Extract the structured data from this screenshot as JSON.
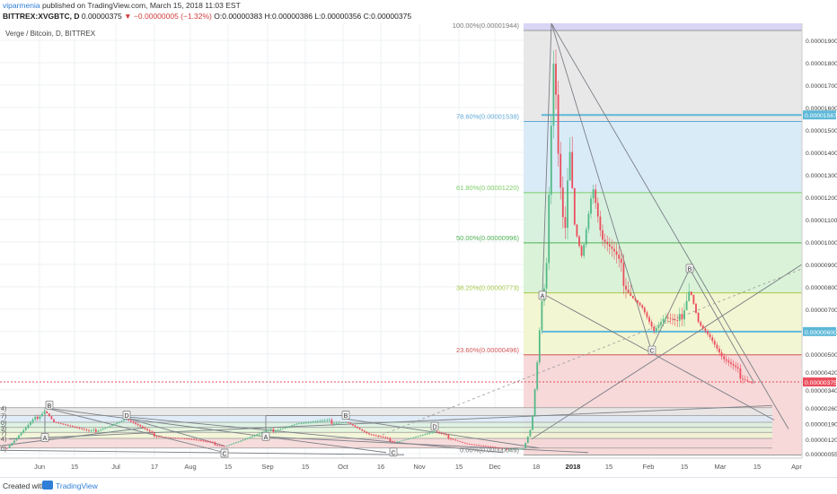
{
  "header": {
    "author": "viparmenia",
    "published": "published on TradingView.com, March 15, 2018 11:03 EST",
    "symbol": "BITTREX:XVGBTC, D",
    "price": "0.00000375",
    "change": "▼ −0.00000005 (−1.32%)",
    "ohlc": "O:0.00000383 H:0.00000386 L:0.00000356 C:0.00000375"
  },
  "footer": {
    "created_with": "Created with",
    "brand": "TradingView"
  },
  "colors": {
    "up": "#53b987",
    "down": "#eb4d5c",
    "fib_line_78": "#5da9d6",
    "fib_line_61": "#7ccd66",
    "fib_line_50": "#4caf50",
    "fib_line_38": "#a8c94a",
    "fib_line_23": "#d25555",
    "price_line": "#eb4d5c",
    "hline": "#5db8d8"
  },
  "chart_data": {
    "type": "candlestick",
    "title": "Verge / Bitcoin, D, BITTREX",
    "y_axis": {
      "ticks": [
        5.5e-07,
        1.2e-06,
        1.9e-06,
        2.6e-06,
        3.4e-06,
        4.2e-06,
        5e-06,
        6e-06,
        7e-06,
        8e-06,
        9e-06,
        1e-05,
        1.1e-05,
        1.2e-05,
        1.3e-05,
        1.4e-05,
        1.5e-05,
        1.6e-05,
        1.7e-05,
        1.8e-05,
        1.9e-05
      ],
      "tick_labels": [
        "0.00000055",
        "0.00000120",
        "0.00000190",
        "0.00000260",
        "0.00000340",
        "0.00000420",
        "0.00000500",
        "0.00000600",
        "0.00000700",
        "0.00000800",
        "0.00000900",
        "0.00001000",
        "0.00001100",
        "0.00001200",
        "0.00001300",
        "0.00001400",
        "0.00001500",
        "0.00001600",
        "0.00001700",
        "0.00001800",
        "0.00001900"
      ],
      "price_labels": [
        {
          "value": 1.567e-05,
          "text": "0.00001567"
        },
        {
          "value": 6e-06,
          "text": "0.00000600"
        },
        {
          "value": 3.75e-06,
          "text": "0.00000375"
        }
      ]
    },
    "x_axis": {
      "ticks": [
        "Jun",
        "15",
        "Jul",
        "17",
        "Aug",
        "15",
        "Sep",
        "15",
        "Oct",
        "16",
        "Nov",
        "15",
        "Dec",
        "18",
        "2018",
        "15",
        "Feb",
        "15",
        "Mar",
        "15",
        "Apr"
      ]
    },
    "fib_levels": [
      {
        "ratio": "100.00%",
        "price": "0.00001944",
        "value": 1.944e-05
      },
      {
        "ratio": "78.60%",
        "price": "0.00001538",
        "value": 1.538e-05
      },
      {
        "ratio": "61.80%",
        "price": "0.00001220",
        "value": 1.22e-05
      },
      {
        "ratio": "50.00%",
        "price": "0.00000996",
        "value": 9.96e-06
      },
      {
        "ratio": "38.20%",
        "price": "0.00000773",
        "value": 7.73e-06
      },
      {
        "ratio": "23.60%",
        "price": "0.00000496",
        "value": 4.96e-06
      },
      {
        "ratio": "0.00%",
        "price": "0.00000049",
        "value": 4.9e-07
      }
    ],
    "horizontal_lines": [
      1.567e-05,
      6e-06
    ],
    "current_price": 3.75e-06,
    "pattern_labels": [
      "A",
      "B",
      "C",
      "D",
      "A",
      "B",
      "C",
      "D",
      "A",
      "B",
      "C"
    ],
    "left_fib_labels": [
      "4)",
      "7)",
      "0)",
      "3)",
      "7)",
      "4)",
      "0)"
    ],
    "key_points": [
      {
        "date": "Jun 05",
        "price": 2.5e-06
      },
      {
        "date": "Dec 21",
        "price": 1.944e-05
      },
      {
        "date": "Dec 25",
        "price": 1.8e-05
      },
      {
        "date": "Jan 05",
        "price": 1.5e-05
      },
      {
        "date": "Jan 15",
        "price": 9e-06
      },
      {
        "date": "Feb 06",
        "price": 5.8e-06
      },
      {
        "date": "Feb 18",
        "price": 8.5e-06
      },
      {
        "date": "Mar 15",
        "price": 3.75e-06
      }
    ]
  }
}
